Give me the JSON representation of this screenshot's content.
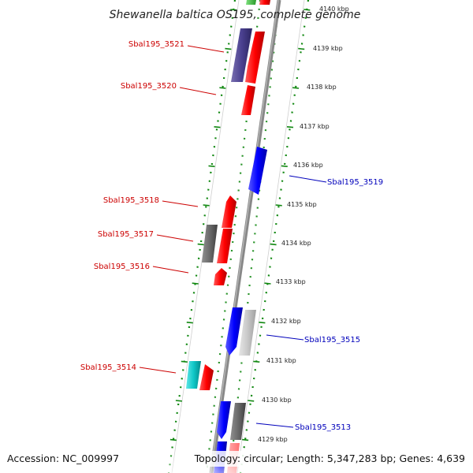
{
  "title": "Shewanella baltica OS195, complete genome",
  "footer": {
    "accession": "Accession: NC_009997",
    "summary": "Topology: circular; Length: 5,347,283 bp; Genes: 4,639"
  },
  "kbp_ticks": [
    "4140 kbp",
    "4139 kbp",
    "4138 kbp",
    "4137 kbp",
    "4136 kbp",
    "4135 kbp",
    "4134 kbp",
    "4133 kbp",
    "4132 kbp",
    "4131 kbp",
    "4130 kbp",
    "4129 kbp"
  ],
  "gene_labels": {
    "left": [
      "Sbal195_3521",
      "Sbal195_3520",
      "Sbal195_3518",
      "Sbal195_3517",
      "Sbal195_3516",
      "Sbal195_3514"
    ],
    "right": [
      "Sbal195_3519",
      "Sbal195_3515",
      "Sbal195_3513"
    ]
  },
  "colors": {
    "forward_label": "#cc0000",
    "reverse_label": "#0000bb",
    "dots": "#118811",
    "backbone": "#888888"
  }
}
